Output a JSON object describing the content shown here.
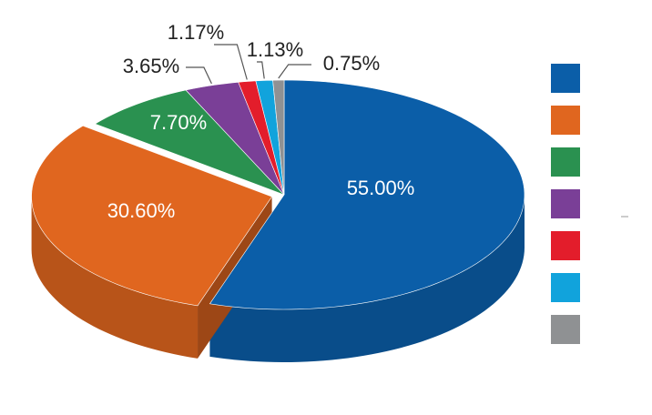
{
  "chart_data": {
    "type": "pie3d",
    "values": [
      55,
      30.6,
      7.7,
      3.65,
      1.17,
      1.13,
      0.75
    ],
    "value_labels": [
      "55.00%",
      "30.60%",
      "7.70%",
      "3.65%",
      "1.17%",
      "1.13%",
      "0.75%"
    ],
    "colors": [
      "#0b5ea8",
      "#e0661f",
      "#2a9150",
      "#7a3f97",
      "#e31d2b",
      "#11a3dc",
      "#8f9193"
    ],
    "legend": "right"
  }
}
